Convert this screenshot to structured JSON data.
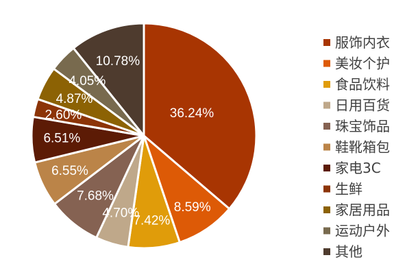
{
  "chart_data": {
    "type": "pie",
    "title": "",
    "legend_position": "right",
    "start_angle_deg": 0,
    "direction": "clockwise",
    "slices": [
      {
        "label": "服饰内衣",
        "value": 36.24,
        "display": "36.24%",
        "color": "#a83502"
      },
      {
        "label": "美妆个护",
        "value": 8.59,
        "display": "8.59%",
        "color": "#dd5a06"
      },
      {
        "label": "食品饮料",
        "value": 7.42,
        "display": "7.42%",
        "color": "#e09c0a"
      },
      {
        "label": "日用百货",
        "value": 4.7,
        "display": "4.70%",
        "color": "#bfa88a"
      },
      {
        "label": "珠宝饰品",
        "value": 7.68,
        "display": "7.68%",
        "color": "#856252"
      },
      {
        "label": "鞋靴箱包",
        "value": 6.55,
        "display": "6.55%",
        "color": "#bb8448"
      },
      {
        "label": "家电3C",
        "value": 6.51,
        "display": "6.51%",
        "color": "#5c1b05"
      },
      {
        "label": "生鲜",
        "value": 2.6,
        "display": "2.60%",
        "color": "#8c3407"
      },
      {
        "label": "家居用品",
        "value": 4.87,
        "display": "4.87%",
        "color": "#8c6204"
      },
      {
        "label": "运动户外",
        "value": 4.05,
        "display": "4.05%",
        "color": "#786a4e"
      },
      {
        "label": "其他",
        "value": 10.78,
        "display": "10.78%",
        "color": "#4e3b2e"
      }
    ]
  }
}
